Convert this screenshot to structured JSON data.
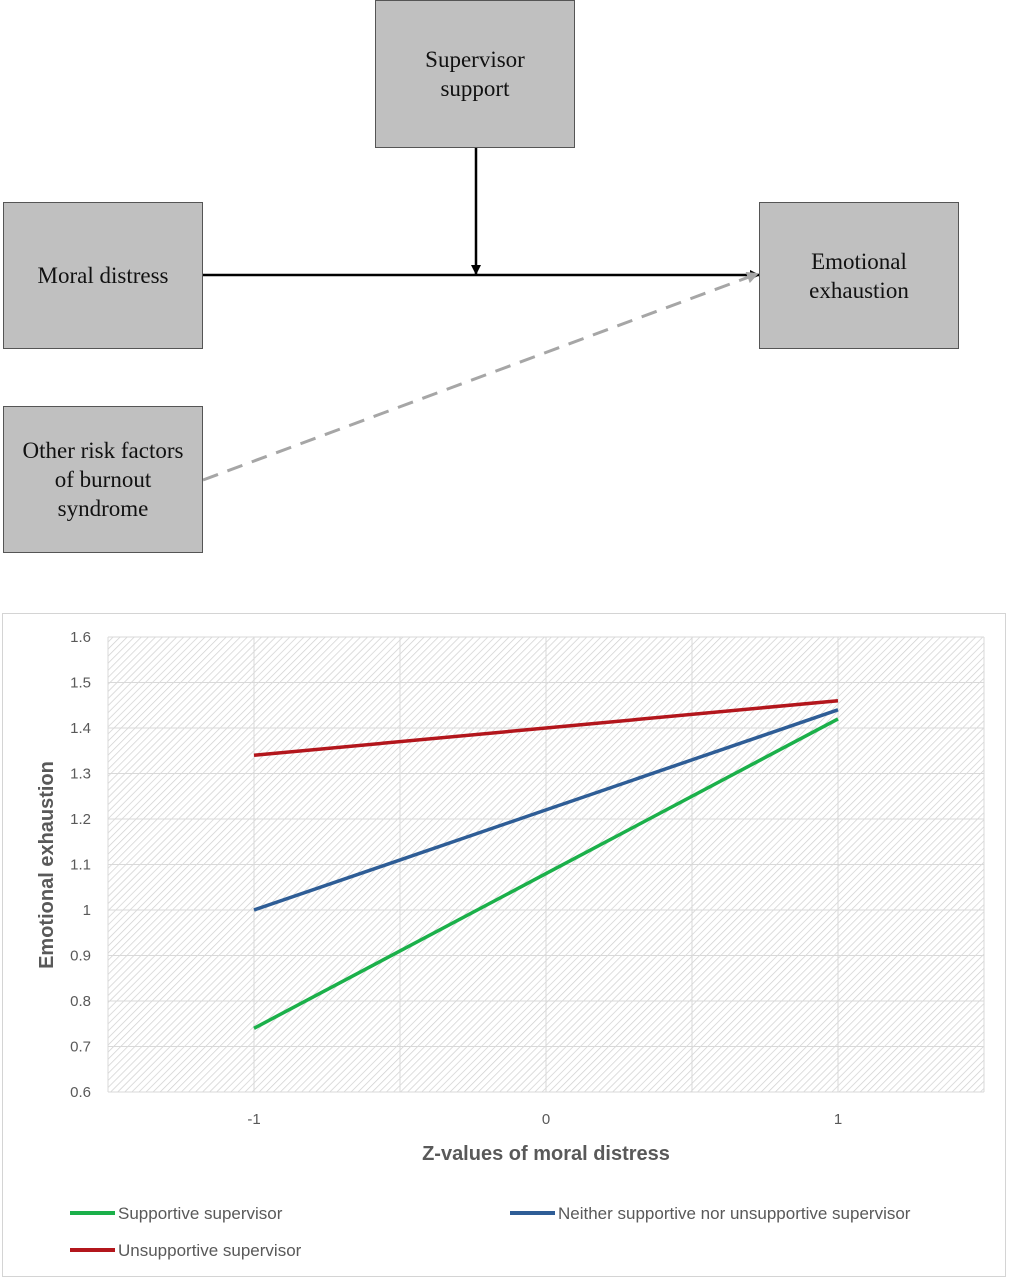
{
  "diagram": {
    "boxes": {
      "supervisor_support": "Supervisor\nsupport",
      "moral_distress": "Moral distress",
      "emotional_exhaustion": "Emotional\nexhaustion",
      "other_risk_factors": "Other risk factors\nof burnout\nsyndrome"
    }
  },
  "chart_data": {
    "type": "line",
    "xlabel": "Z-values of moral distress",
    "ylabel": "Emotional exhaustion",
    "x": [
      -1,
      0,
      1
    ],
    "x_tick_labels": [
      "-1",
      "0",
      "1"
    ],
    "xlim": [
      -1.5,
      1.5
    ],
    "ylim": [
      0.6,
      1.6
    ],
    "y_ticks": [
      0.6,
      0.7,
      0.8,
      0.9,
      1,
      1.1,
      1.2,
      1.3,
      1.4,
      1.5,
      1.6
    ],
    "y_tick_labels": [
      "0.6",
      "0.7",
      "0.8",
      "0.9",
      "1",
      "1.1",
      "1.2",
      "1.3",
      "1.4",
      "1.5",
      "1.6"
    ],
    "grid": true,
    "legend_position": "bottom",
    "series": [
      {
        "name": "Supportive supervisor",
        "color": "#1bb04a",
        "values": [
          0.74,
          1.08,
          1.42
        ]
      },
      {
        "name": "Neither supportive nor unsupportive supervisor",
        "color": "#2e5d96",
        "values": [
          1.0,
          1.22,
          1.44
        ]
      },
      {
        "name": "Unsupportive supervisor",
        "color": "#b3161c",
        "values": [
          1.34,
          1.4,
          1.46
        ]
      }
    ]
  }
}
